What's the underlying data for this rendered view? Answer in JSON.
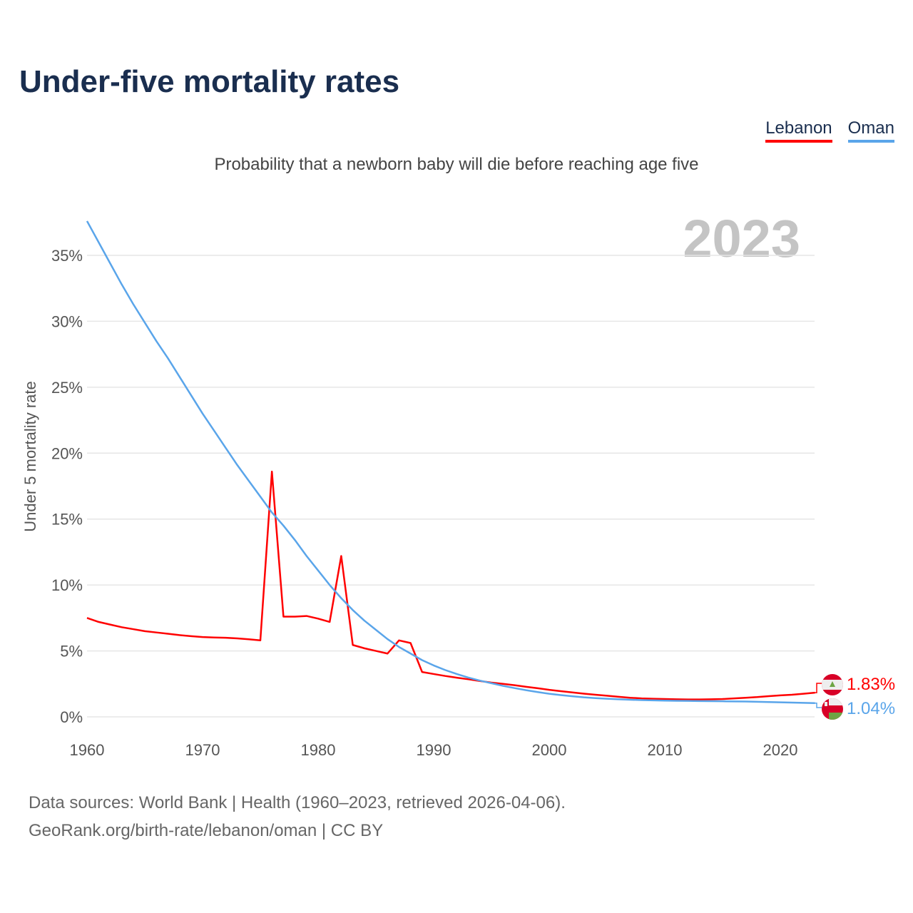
{
  "title": "Under-five mortality rates",
  "subtitle": "Probability that a newborn baby will die before reaching age five",
  "source_line1": "Data sources: World Bank | Health (1960–2023, retrieved 2026-04-06).",
  "source_line2": "GeoRank.org/birth-rate/lebanon/oman | CC BY",
  "year_watermark": "2023",
  "chart_data": {
    "type": "line",
    "title": "Under-five mortality rates",
    "ylabel": "Under 5 mortality rate",
    "xlabel": "",
    "xlim": [
      1960,
      2023
    ],
    "ylim": [
      0,
      37.6
    ],
    "x_ticks": [
      1960,
      1970,
      1980,
      1990,
      2000,
      2010,
      2020
    ],
    "y_ticks": [
      0,
      5,
      10,
      15,
      20,
      25,
      30,
      35
    ],
    "y_tick_labels": [
      "0%",
      "5%",
      "10%",
      "15%",
      "20%",
      "25%",
      "30%",
      "35%"
    ],
    "grid": true,
    "legend": "top-right",
    "x_start": 1960,
    "series": [
      {
        "name": "Lebanon",
        "color": "#ff0000",
        "end_label": "1.83%",
        "flag": "lebanon-flag",
        "values": [
          7.5,
          7.2,
          7.0,
          6.8,
          6.65,
          6.5,
          6.4,
          6.3,
          6.2,
          6.12,
          6.05,
          6.02,
          6.0,
          5.95,
          5.88,
          5.8,
          18.6,
          7.6,
          7.6,
          7.65,
          7.45,
          7.2,
          12.2,
          5.45,
          5.2,
          5.0,
          4.8,
          5.8,
          5.6,
          3.4,
          3.25,
          3.1,
          2.97,
          2.85,
          2.72,
          2.6,
          2.5,
          2.4,
          2.28,
          2.17,
          2.05,
          1.95,
          1.85,
          1.76,
          1.68,
          1.6,
          1.52,
          1.45,
          1.4,
          1.37,
          1.35,
          1.33,
          1.32,
          1.32,
          1.33,
          1.35,
          1.4,
          1.45,
          1.5,
          1.57,
          1.63,
          1.68,
          1.75,
          1.83
        ]
      },
      {
        "name": "Oman",
        "color": "#5aa5ea",
        "end_label": "1.04%",
        "flag": "oman-flag",
        "values": [
          37.6,
          36.0,
          34.4,
          32.8,
          31.3,
          29.9,
          28.5,
          27.2,
          25.8,
          24.4,
          23.0,
          21.7,
          20.4,
          19.1,
          17.9,
          16.7,
          15.5,
          14.5,
          13.4,
          12.2,
          11.1,
          10.0,
          9.0,
          8.1,
          7.3,
          6.6,
          5.9,
          5.3,
          4.8,
          4.3,
          3.9,
          3.55,
          3.25,
          2.98,
          2.75,
          2.55,
          2.35,
          2.18,
          2.02,
          1.88,
          1.75,
          1.65,
          1.56,
          1.48,
          1.42,
          1.37,
          1.33,
          1.3,
          1.27,
          1.25,
          1.23,
          1.22,
          1.21,
          1.2,
          1.19,
          1.18,
          1.17,
          1.16,
          1.14,
          1.12,
          1.1,
          1.08,
          1.06,
          1.04
        ]
      }
    ]
  }
}
